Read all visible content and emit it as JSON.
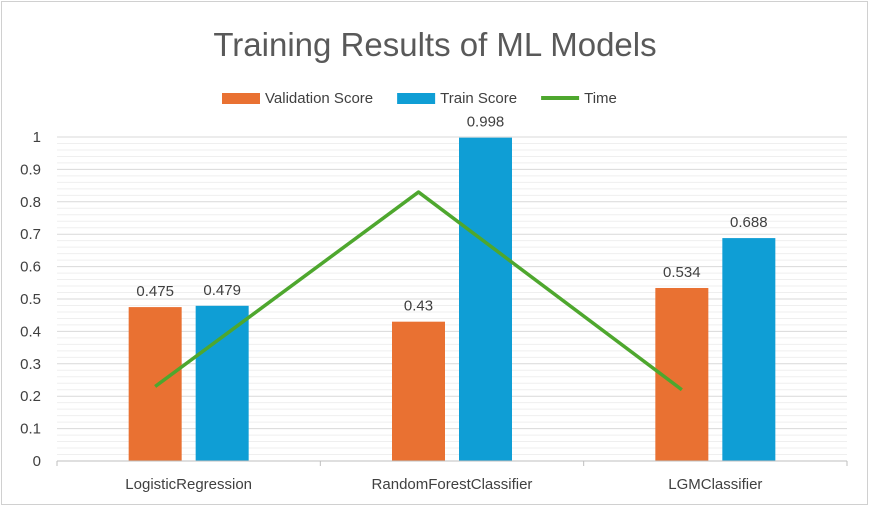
{
  "chart_data": {
    "type": "bar",
    "title": "Training Results of ML Models",
    "categories": [
      "LogisticRegression",
      "RandomForestClassifier",
      "LGMClassifier"
    ],
    "series": [
      {
        "name": "Validation Score",
        "kind": "bar",
        "color": "#E97132",
        "values": [
          0.475,
          0.43,
          0.534
        ]
      },
      {
        "name": "Train Score",
        "kind": "bar",
        "color": "#0F9ED5",
        "values": [
          0.479,
          0.998,
          0.688
        ]
      },
      {
        "name": "Time",
        "kind": "line",
        "color": "#4EA72E",
        "values": [
          0.23,
          0.83,
          0.22
        ]
      }
    ],
    "data_labels": {
      "Validation Score": [
        "0.475",
        "0.43",
        "0.534"
      ],
      "Train Score": [
        "0.479",
        "0.998",
        "0.688"
      ]
    },
    "ylim": [
      0,
      1
    ],
    "yticks": [
      "0",
      "0.1",
      "0.2",
      "0.3",
      "0.4",
      "0.5",
      "0.6",
      "0.7",
      "0.8",
      "0.9",
      "1"
    ],
    "grid": true,
    "legend": "top",
    "xlabel": "",
    "ylabel": ""
  }
}
